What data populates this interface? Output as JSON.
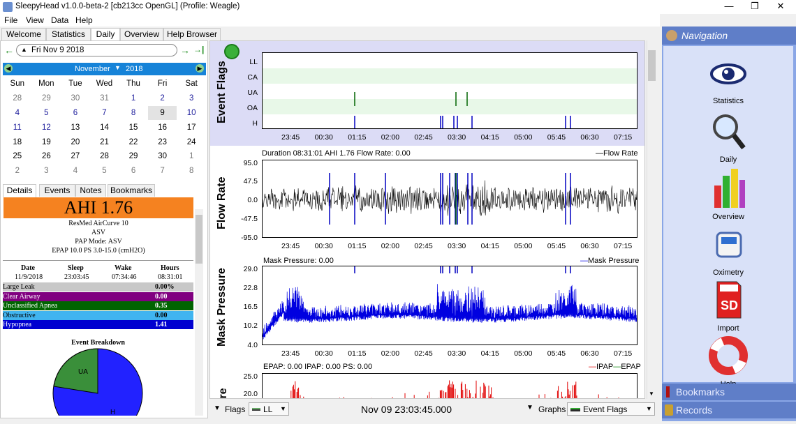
{
  "window": {
    "title": "SleepyHead v1.0.0-beta-2 [cb213cc OpenGL] (Profile: Weagle)",
    "min": "—",
    "max": "❐",
    "close": "✕"
  },
  "menu": [
    "File",
    "View",
    "Data",
    "Help"
  ],
  "tabs": [
    "Welcome",
    "Statistics",
    "Daily",
    "Overview",
    "Help Browser"
  ],
  "date_nav": {
    "date": "Fri Nov 9 2018",
    "prev": "←",
    "next": "→",
    "last": "→|"
  },
  "calendar": {
    "month": "November",
    "year": "2018",
    "days": [
      "Sun",
      "Mon",
      "Tue",
      "Wed",
      "Thu",
      "Fri",
      "Sat"
    ],
    "weeks": [
      [
        "28",
        "29",
        "30",
        "31",
        "1",
        "2",
        "3"
      ],
      [
        "4",
        "5",
        "6",
        "7",
        "8",
        "9",
        "10"
      ],
      [
        "11",
        "12",
        "13",
        "14",
        "15",
        "16",
        "17"
      ],
      [
        "18",
        "19",
        "20",
        "21",
        "22",
        "23",
        "24"
      ],
      [
        "25",
        "26",
        "27",
        "28",
        "29",
        "30",
        "1"
      ],
      [
        "2",
        "3",
        "4",
        "5",
        "6",
        "7",
        "8"
      ]
    ]
  },
  "detail_tabs": [
    "Details",
    "Events",
    "Notes",
    "Bookmarks"
  ],
  "ahi": "AHI 1.76",
  "machine": {
    "model": "ResMed AirCurve 10",
    "mode": "ASV",
    "pap_mode": "PAP Mode: ASV",
    "settings": "EPAP 10.0 PS 3.0-15.0 (cmH2O)"
  },
  "session": {
    "headers": [
      "Date",
      "Sleep",
      "Wake",
      "Hours"
    ],
    "values": [
      "11/9/2018",
      "23:03:45",
      "07:34:46",
      "08:31:01"
    ]
  },
  "events": [
    {
      "name": "Large Leak",
      "value": "0.00%",
      "bg": "#c8c8c8",
      "fg": "#000"
    },
    {
      "name": "Clear Airway",
      "value": "0.00",
      "bg": "#800080",
      "fg": "#fff"
    },
    {
      "name": "Unclassified Apnea",
      "value": "0.35",
      "bg": "#006400",
      "fg": "#fff"
    },
    {
      "name": "Obstructive",
      "value": "0.00",
      "bg": "#40b4f0",
      "fg": "#000"
    },
    {
      "name": "Hypopnea",
      "value": "1.41",
      "bg": "#0000d0",
      "fg": "#fff"
    }
  ],
  "breakdown": {
    "title": "Event Breakdown",
    "labels": [
      "UA",
      "H"
    ]
  },
  "graphs": {
    "event_flags": {
      "label": "Event Flags",
      "rows": [
        "LL",
        "CA",
        "UA",
        "OA",
        "H"
      ]
    },
    "flow_rate": {
      "label": "Flow Rate",
      "info": "Duration 08:31:01 AHI 1.76 Flow Rate: 0.00",
      "legend": "Flow Rate",
      "yticks": [
        "95.0",
        "47.5",
        "0.0",
        "-47.5",
        "-95.0"
      ]
    },
    "mask_pressure": {
      "label": "Mask Pressure",
      "info": "Mask Pressure: 0.00",
      "legend": "Mask Pressure",
      "yticks": [
        "29.0",
        "22.8",
        "16.5",
        "10.2",
        "4.0"
      ]
    },
    "pressure": {
      "label": "Pressure",
      "info": "EPAP: 0.00 IPAP: 0.00 PS: 0.00",
      "legend_ipap": "IPAP",
      "legend_epap": "EPAP",
      "yticks": [
        "25.0",
        "20.0"
      ]
    },
    "xticks": [
      "23:45",
      "00:30",
      "01:15",
      "02:00",
      "02:45",
      "03:30",
      "04:15",
      "05:00",
      "05:45",
      "06:30",
      "07:15"
    ]
  },
  "bottom": {
    "flags": "Flags",
    "flag_sel": "LL",
    "time": "Nov 09 23:03:45.000",
    "graphs": "Graphs",
    "graph_sel": "Event Flags"
  },
  "nav": {
    "title": "Navigation",
    "items": [
      "Statistics",
      "Daily",
      "Overview",
      "Oximetry",
      "Import",
      "Help"
    ],
    "bookmarks": "Bookmarks",
    "records": "Records"
  },
  "colors": {
    "ahi_bg": "#f58220",
    "flow": "#000000",
    "pressure": "#0000e0",
    "ipap": "#e00000",
    "nav_bg": "#8aa6e6"
  }
}
